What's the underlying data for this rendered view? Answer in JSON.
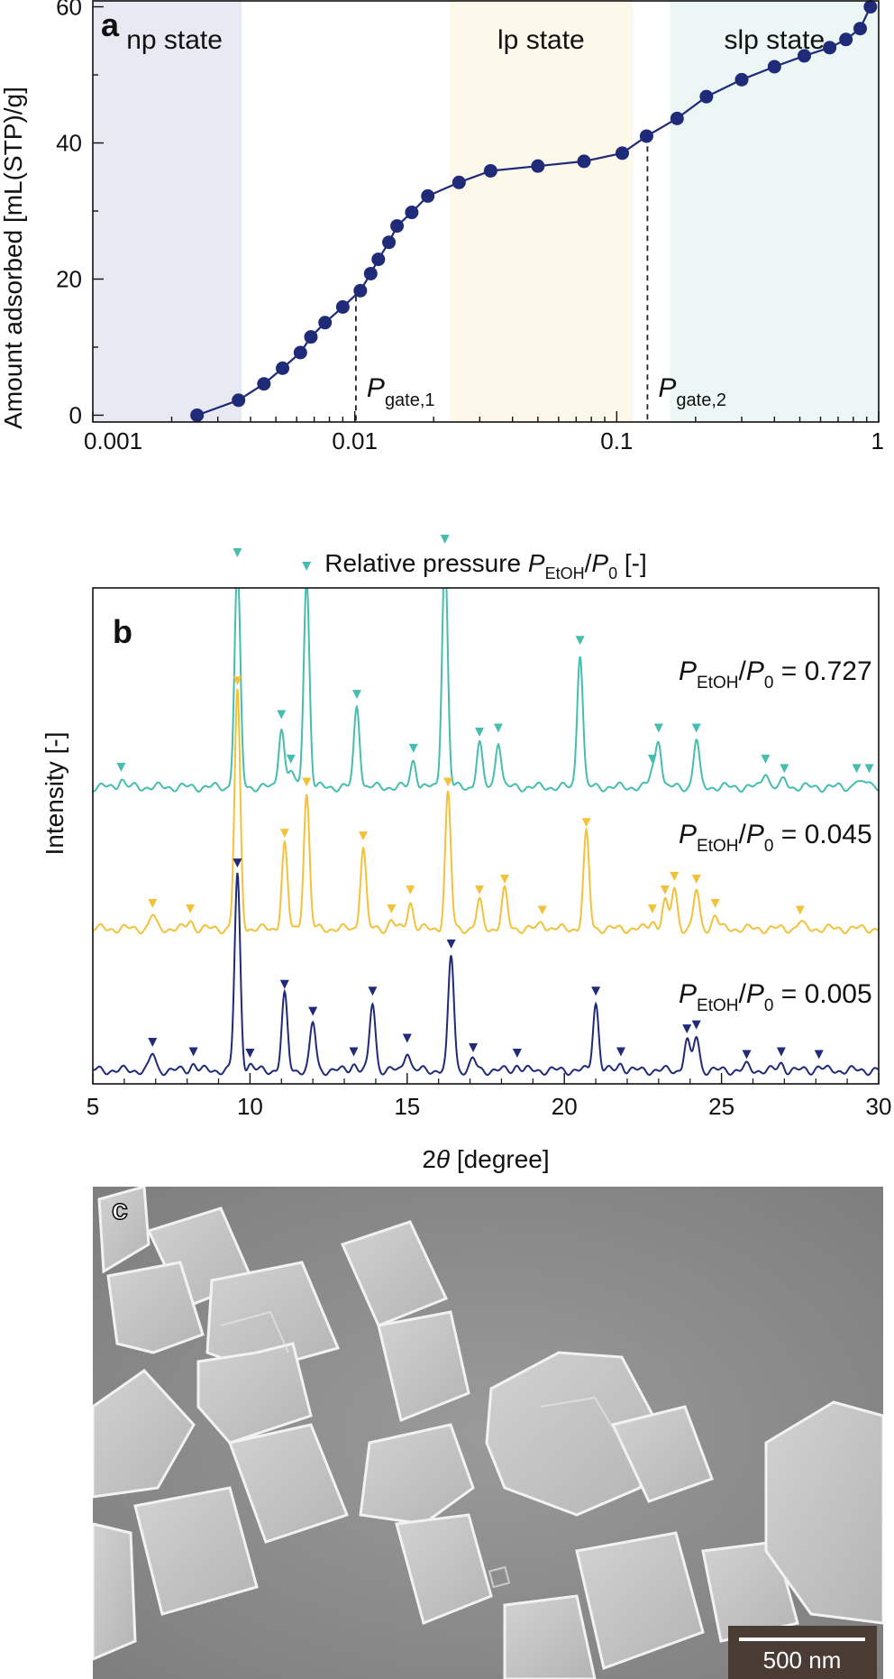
{
  "chart_data": [
    {
      "panel": "a",
      "type": "line",
      "xlabel": "Relative pressure P_EtOH/P_0 [-]",
      "xlabel_parts": {
        "prefix": "Relative pressure ",
        "p1": "P",
        "sub1": "EtOH",
        "slash": "/",
        "p2": "P",
        "sub2": "0",
        "suffix": " [-]"
      },
      "ylabel": "Amount adsorbed [mL(STP)/g]",
      "x_scale": "log",
      "xlim": [
        0.001,
        1
      ],
      "ylim": [
        -1,
        61
      ],
      "x_ticks": [
        0.001,
        0.01,
        0.1,
        1
      ],
      "x_tick_labels": [
        "0.001",
        "0.01",
        "0.1",
        "1"
      ],
      "y_ticks": [
        0,
        20,
        40,
        60
      ],
      "y_tick_labels": [
        "0",
        "20",
        "40",
        "60"
      ],
      "regions": [
        {
          "label": "np state",
          "x0": 0.001,
          "x1": 0.0037,
          "color": "#e8e9f3"
        },
        {
          "label": "lp state",
          "x0": 0.023,
          "x1": 0.115,
          "color": "#fcf8ea"
        },
        {
          "label": "slp state",
          "x0": 0.16,
          "x1": 1,
          "color": "#ecf7f5"
        }
      ],
      "annotations": [
        {
          "p": "P",
          "sub": "gate,1",
          "x": 0.0101
        },
        {
          "p": "P",
          "sub": "gate,2",
          "x": 0.131
        }
      ],
      "gate_lines": [
        {
          "x": 0.0101,
          "y_top": 17.5
        },
        {
          "x": 0.131,
          "y_top": 39.5
        }
      ],
      "series": [
        {
          "color": "#1f2a78",
          "x": [
            0.0025,
            0.0036,
            0.0045,
            0.0053,
            0.0062,
            0.0068,
            0.0077,
            0.009,
            0.0105,
            0.0115,
            0.0123,
            0.0135,
            0.0145,
            0.0165,
            0.019,
            0.025,
            0.033,
            0.05,
            0.075,
            0.105,
            0.13,
            0.17,
            0.22,
            0.3,
            0.4,
            0.52,
            0.65,
            0.75,
            0.85,
            0.93
          ],
          "y": [
            0,
            2.2,
            4.6,
            6.9,
            9.2,
            11.5,
            13.6,
            15.9,
            18.3,
            20.8,
            22.9,
            25.4,
            27.8,
            29.8,
            32.2,
            34.2,
            35.9,
            36.6,
            37.3,
            38.5,
            41.0,
            43.6,
            46.8,
            49.3,
            51.2,
            52.8,
            54.0,
            55.2,
            56.8,
            60.0
          ]
        }
      ]
    },
    {
      "panel": "b",
      "type": "line",
      "xlabel": "2θ [degree]",
      "xlabel_parts": {
        "pre": "2",
        "theta": "θ",
        "post": " [degree]"
      },
      "ylabel": "Intensity [-]",
      "xlim": [
        5,
        30
      ],
      "x_ticks": [
        5,
        10,
        15,
        20,
        25,
        30
      ],
      "x_tick_labels": [
        "5",
        "10",
        "15",
        "20",
        "25",
        "30"
      ],
      "series": [
        {
          "color": "#46bdae",
          "label_p1": "P",
          "label_sub": "EtOH",
          "label_p2": "P",
          "label_sub2": "0",
          "label_value": " = 0.727",
          "offset": 2.1,
          "peaks": [
            {
              "x": 5.9,
              "h": 0.06
            },
            {
              "x": 9.6,
              "h": 1.65
            },
            {
              "x": 11.0,
              "h": 0.45
            },
            {
              "x": 11.3,
              "h": 0.12
            },
            {
              "x": 11.8,
              "h": 1.55
            },
            {
              "x": 13.4,
              "h": 0.6
            },
            {
              "x": 15.2,
              "h": 0.2
            },
            {
              "x": 16.2,
              "h": 1.75
            },
            {
              "x": 17.3,
              "h": 0.32
            },
            {
              "x": 17.9,
              "h": 0.35
            },
            {
              "x": 20.5,
              "h": 1.0
            },
            {
              "x": 22.8,
              "h": 0.12
            },
            {
              "x": 23.0,
              "h": 0.35
            },
            {
              "x": 24.2,
              "h": 0.35
            },
            {
              "x": 26.4,
              "h": 0.12
            },
            {
              "x": 27.0,
              "h": 0.05
            },
            {
              "x": 29.3,
              "h": 0.05
            },
            {
              "x": 29.7,
              "h": 0.05
            }
          ]
        },
        {
          "color": "#f2c23a",
          "label_p1": "P",
          "label_sub": "EtOH",
          "label_p2": "P",
          "label_sub2": "0",
          "label_value": " = 0.045",
          "offset": 1.05,
          "peaks": [
            {
              "x": 6.9,
              "h": 0.1
            },
            {
              "x": 8.1,
              "h": 0.06
            },
            {
              "x": 9.6,
              "h": 1.75
            },
            {
              "x": 11.1,
              "h": 0.62
            },
            {
              "x": 11.8,
              "h": 1.0
            },
            {
              "x": 13.6,
              "h": 0.6
            },
            {
              "x": 14.5,
              "h": 0.06
            },
            {
              "x": 15.1,
              "h": 0.2
            },
            {
              "x": 16.3,
              "h": 1.0
            },
            {
              "x": 17.3,
              "h": 0.2
            },
            {
              "x": 18.1,
              "h": 0.28
            },
            {
              "x": 19.3,
              "h": 0.05
            },
            {
              "x": 20.7,
              "h": 0.7
            },
            {
              "x": 22.8,
              "h": 0.06
            },
            {
              "x": 23.2,
              "h": 0.2
            },
            {
              "x": 23.5,
              "h": 0.3
            },
            {
              "x": 24.2,
              "h": 0.28
            },
            {
              "x": 24.8,
              "h": 0.1
            },
            {
              "x": 27.5,
              "h": 0.05
            }
          ]
        },
        {
          "color": "#1f2a78",
          "label_p1": "P",
          "label_sub": "EtOH",
          "label_p2": "P",
          "label_sub2": "0",
          "label_value": " = 0.005",
          "offset": 0,
          "peaks": [
            {
              "x": 6.9,
              "h": 0.12
            },
            {
              "x": 8.2,
              "h": 0.05
            },
            {
              "x": 9.6,
              "h": 1.45
            },
            {
              "x": 10.0,
              "h": 0.04
            },
            {
              "x": 11.1,
              "h": 0.55
            },
            {
              "x": 12.0,
              "h": 0.35
            },
            {
              "x": 13.3,
              "h": 0.05
            },
            {
              "x": 13.9,
              "h": 0.5
            },
            {
              "x": 15.0,
              "h": 0.15
            },
            {
              "x": 16.4,
              "h": 0.85
            },
            {
              "x": 17.1,
              "h": 0.08
            },
            {
              "x": 18.5,
              "h": 0.04
            },
            {
              "x": 21.0,
              "h": 0.5
            },
            {
              "x": 21.8,
              "h": 0.05
            },
            {
              "x": 23.9,
              "h": 0.22
            },
            {
              "x": 24.2,
              "h": 0.25
            },
            {
              "x": 25.8,
              "h": 0.03
            },
            {
              "x": 26.9,
              "h": 0.05
            },
            {
              "x": 28.1,
              "h": 0.03
            }
          ]
        }
      ]
    }
  ],
  "panel_c": {
    "letter": "c",
    "scale_bar_label": "500 nm"
  },
  "panel_letters": {
    "a": "a",
    "b": "b"
  }
}
